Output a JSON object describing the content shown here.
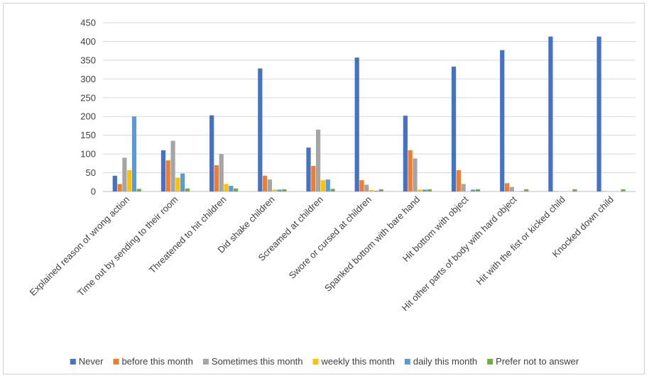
{
  "chart_data": {
    "type": "bar",
    "title": "",
    "xlabel": "",
    "ylabel": "",
    "ylim": [
      0,
      450
    ],
    "yticks": [
      0,
      50,
      100,
      150,
      200,
      250,
      300,
      350,
      400,
      450
    ],
    "grid": true,
    "legend_position": "bottom",
    "categories": [
      "Explained reason of wrong action",
      "Time out by sending to their room",
      "Threatened to hit children",
      "Did shake children",
      "Screamed at children",
      "Swore or cursed at children",
      "Spanked bottom with bare hand",
      "Hit bottom with object",
      "Hit other parts of body with hard object",
      "Hit with the fist or kicked child",
      "Knocked down child"
    ],
    "series": [
      {
        "name": "Never",
        "color": "#4472C4",
        "values": [
          42,
          110,
          203,
          328,
          117,
          357,
          202,
          333,
          377,
          413,
          413
        ]
      },
      {
        "name": "before this month",
        "color": "#ED7D31",
        "values": [
          20,
          83,
          70,
          42,
          68,
          30,
          110,
          57,
          22,
          1,
          1
        ]
      },
      {
        "name": "Sometimes this month",
        "color": "#A5A5A5",
        "values": [
          90,
          135,
          100,
          32,
          165,
          18,
          88,
          20,
          12,
          0,
          0
        ]
      },
      {
        "name": "weekly this month",
        "color": "#FFC000",
        "values": [
          57,
          37,
          20,
          5,
          30,
          4,
          5,
          1,
          1,
          0,
          0
        ]
      },
      {
        "name": "daily this month",
        "color": "#5B9BD5",
        "values": [
          200,
          48,
          15,
          5,
          32,
          2,
          5,
          5,
          1,
          0,
          0
        ]
      },
      {
        "name": "Prefer not to answer",
        "color": "#70AD47",
        "values": [
          7,
          8,
          8,
          6,
          7,
          6,
          6,
          6,
          6,
          6,
          6
        ]
      }
    ]
  }
}
